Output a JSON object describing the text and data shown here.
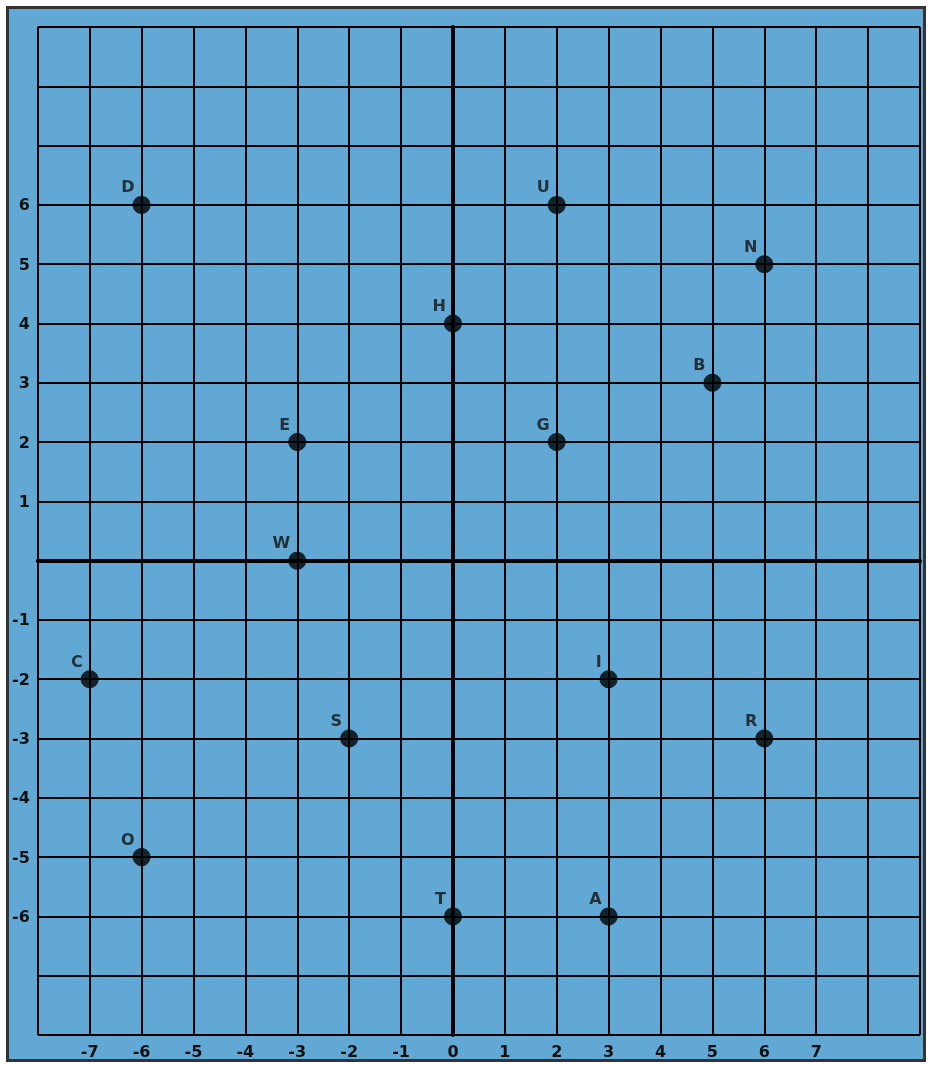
{
  "chart_data": {
    "type": "scatter",
    "x": [
      -6,
      2,
      6,
      0,
      5,
      -3,
      2,
      -3,
      -7,
      -2,
      3,
      6,
      -6,
      0,
      3
    ],
    "series": [
      {
        "color": "#000000",
        "values": [
          6,
          6,
          5,
          4,
          3,
          2,
          2,
          0,
          -2,
          -3,
          -2,
          -3,
          -5,
          -6,
          -6
        ]
      }
    ],
    "marker": "circle",
    "xlim": [
      -8,
      9
    ],
    "ylim": [
      -8,
      9
    ],
    "xticks": [
      {
        "value": -8,
        "label": null
      },
      -7,
      -6,
      -5,
      -4,
      -3,
      -2,
      -1,
      0,
      1,
      2,
      3,
      4,
      5,
      6,
      7,
      {
        "value": 8,
        "label": null
      },
      {
        "value": 9,
        "label": null
      }
    ],
    "yticks": [
      {
        "value": -8,
        "label": null
      },
      {
        "value": -7,
        "label": null
      },
      -6,
      -5,
      -4,
      -3,
      -2,
      -1,
      {
        "value": 0,
        "label": null
      },
      1,
      2,
      3,
      4,
      5,
      6,
      {
        "value": 7,
        "label": null
      },
      {
        "value": 8,
        "label": null
      },
      {
        "value": 9,
        "label": null
      }
    ],
    "grid": true,
    "annotations": [
      {
        "text": "D",
        "x": -6,
        "y": 6
      },
      {
        "text": "U",
        "x": 2,
        "y": 6
      },
      {
        "text": "N",
        "x": 6,
        "y": 5
      },
      {
        "text": "H",
        "x": 0,
        "y": 4
      },
      {
        "text": "B",
        "x": 5,
        "y": 3
      },
      {
        "text": "E",
        "x": -3,
        "y": 2
      },
      {
        "text": "G",
        "x": 2,
        "y": 2
      },
      {
        "text": "W",
        "x": -3,
        "y": 0
      },
      {
        "text": "C",
        "x": -7,
        "y": -2
      },
      {
        "text": "S",
        "x": -2,
        "y": -3
      },
      {
        "text": "I",
        "x": 3,
        "y": -2
      },
      {
        "text": "R",
        "x": 6,
        "y": -3
      },
      {
        "text": "O",
        "x": -6,
        "y": -5
      },
      {
        "text": "T",
        "x": 0,
        "y": -6
      },
      {
        "text": "A",
        "x": 3,
        "y": -6
      }
    ]
  }
}
